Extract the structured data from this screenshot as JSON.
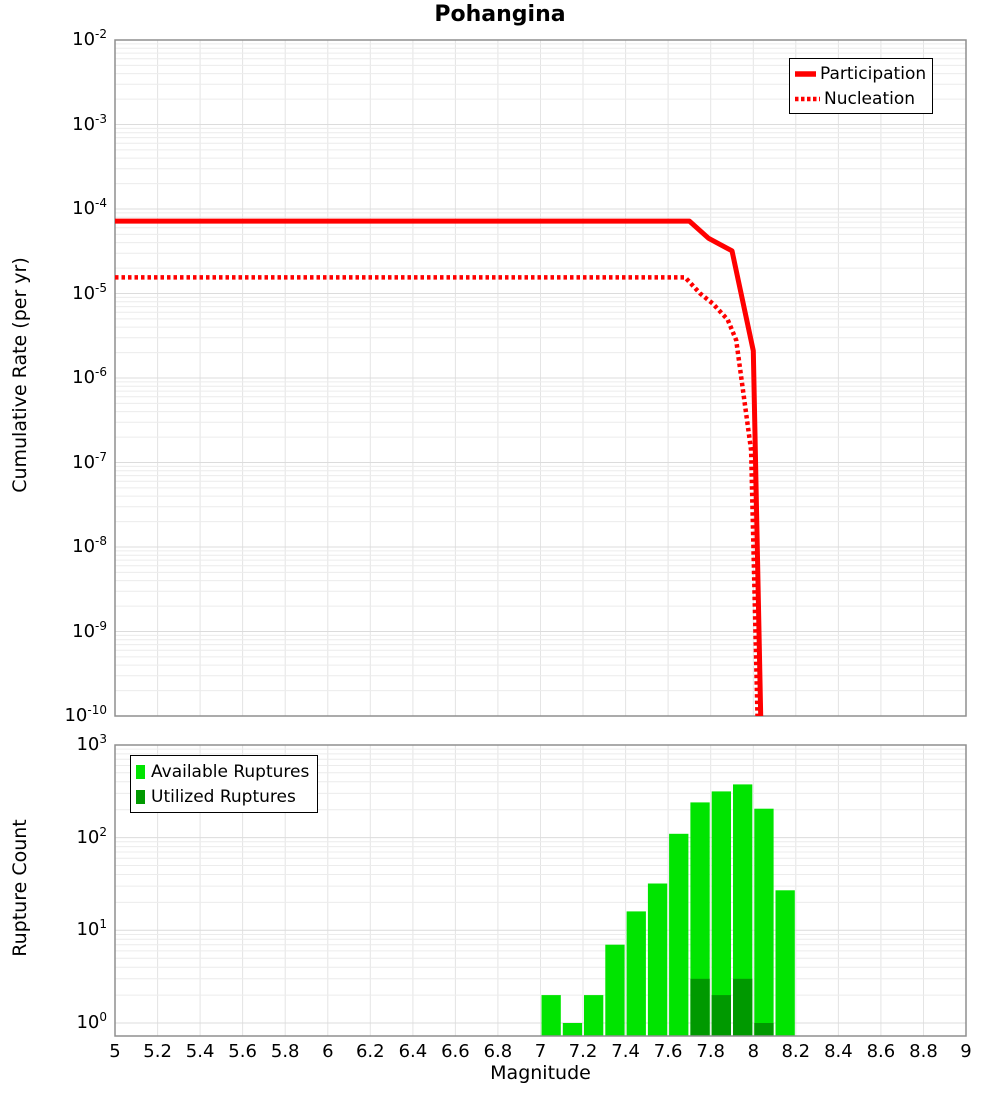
{
  "title": "Pohangina",
  "xlabel": "Magnitude",
  "x_tick_labels": [
    "5",
    "5.2",
    "5.4",
    "5.6",
    "5.8",
    "6",
    "6.2",
    "6.4",
    "6.6",
    "6.8",
    "7",
    "7.2",
    "7.4",
    "7.6",
    "7.8",
    "8",
    "8.2",
    "8.4",
    "8.6",
    "8.8",
    "9"
  ],
  "colors": {
    "curve_red": "#ff0000",
    "available_green": "#00e400",
    "utilized_green": "#009900"
  },
  "chart_data": [
    {
      "type": "line",
      "title": "Pohangina",
      "xlabel": "Magnitude",
      "ylabel": "Cumulative Rate (per yr)",
      "x_range": [
        5,
        9
      ],
      "y_scale": "log",
      "y_range_exponents": [
        -10,
        -2
      ],
      "y_tick_exponents": [
        -2,
        -3,
        -4,
        -5,
        -6,
        -7,
        -8,
        -9,
        -10
      ],
      "grid": true,
      "legend_position": "top-right",
      "series": [
        {
          "name": "Participation",
          "line": "solid",
          "color": "#ff0000",
          "points": [
            [
              5.0,
              7.2e-05
            ],
            [
              7.7,
              7.2e-05
            ],
            [
              7.79,
              4.5e-05
            ],
            [
              7.88,
              3.4e-05
            ],
            [
              7.9,
              3.2e-05
            ],
            [
              8.0,
              2.1e-06
            ],
            [
              8.035,
              1e-10
            ]
          ]
        },
        {
          "name": "Nucleation",
          "line": "dotted",
          "color": "#ff0000",
          "points": [
            [
              5.0,
              1.55e-05
            ],
            [
              7.68,
              1.55e-05
            ],
            [
              7.75,
              1e-05
            ],
            [
              7.81,
              7.6e-06
            ],
            [
              7.88,
              4.9e-06
            ],
            [
              7.92,
              2.8e-06
            ],
            [
              7.99,
              1.4e-07
            ],
            [
              8.02,
              1e-10
            ]
          ]
        }
      ]
    },
    {
      "type": "bar",
      "xlabel": "Magnitude",
      "ylabel": "Rupture Count",
      "x_range": [
        5,
        9
      ],
      "y_scale": "log",
      "y_range_exponents": [
        0,
        3
      ],
      "y_tick_exponents": [
        0,
        1,
        2,
        3
      ],
      "grid": true,
      "legend_position": "top-left",
      "bin_start": 7.0,
      "bin_width": 0.1,
      "bin_edges": [
        7.0,
        7.1,
        7.2,
        7.3,
        7.4,
        7.5,
        7.6,
        7.7,
        7.8,
        7.9,
        8.0,
        8.1,
        8.2
      ],
      "series": [
        {
          "name": "Available Ruptures",
          "color": "#00e400",
          "values": [
            2,
            1,
            2,
            7,
            16,
            32,
            110,
            240,
            315,
            375,
            205,
            27
          ]
        },
        {
          "name": "Utilized Ruptures",
          "color": "#009900",
          "values": [
            0,
            0,
            0,
            0,
            0,
            0,
            0,
            3,
            2,
            3,
            1,
            0
          ]
        }
      ]
    }
  ]
}
